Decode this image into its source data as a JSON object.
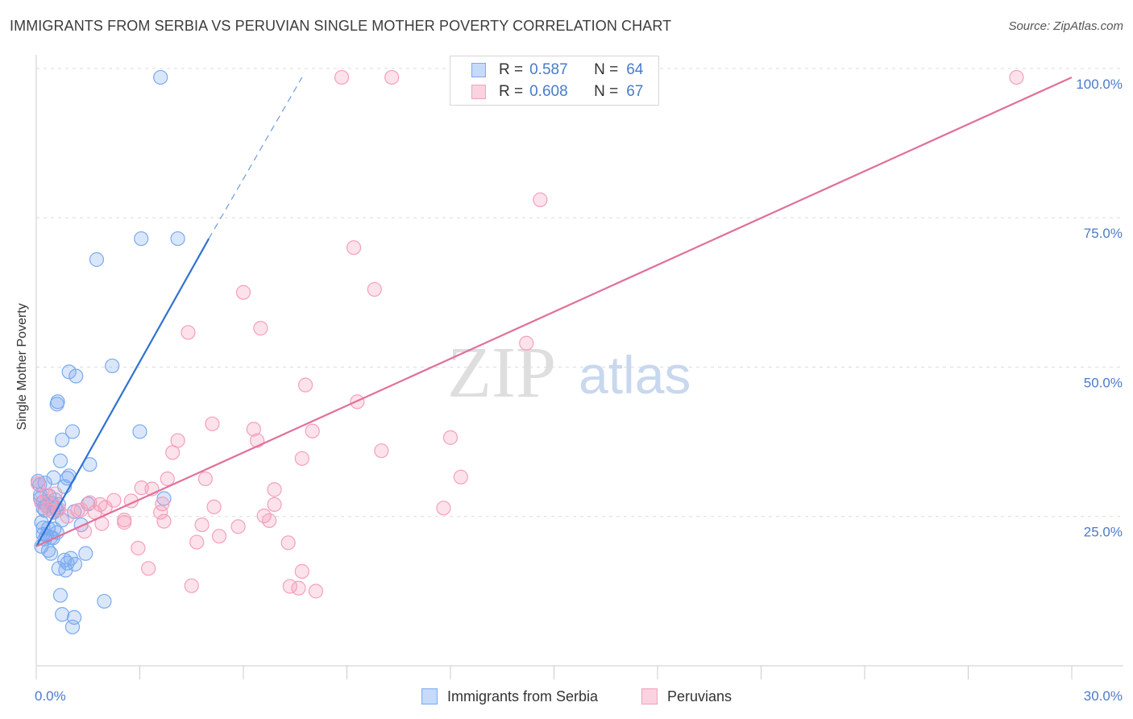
{
  "title": "IMMIGRANTS FROM SERBIA VS PERUVIAN SINGLE MOTHER POVERTY CORRELATION CHART",
  "source": "Source: ZipAtlas.com",
  "watermark": {
    "zip": "ZIP",
    "atlas": "atlas"
  },
  "legend": {
    "r_label": "R =",
    "n_label": "N =",
    "rows": [
      {
        "r": "0.587",
        "n": "64",
        "color": "#7aaaf0"
      },
      {
        "r": "0.608",
        "n": "67",
        "color": "#f4a0bb"
      }
    ]
  },
  "chart_data": {
    "type": "scatter",
    "title": "IMMIGRANTS FROM SERBIA VS PERUVIAN SINGLE MOTHER POVERTY CORRELATION CHART",
    "xlabel": "",
    "ylabel": "Single Mother Poverty",
    "xlim": [
      0,
      30
    ],
    "ylim": [
      0,
      102
    ],
    "x_tick_labels": [
      "0.0%",
      "30.0%"
    ],
    "y_ticks": [
      25,
      50,
      75,
      100
    ],
    "y_tick_labels": [
      "25.0%",
      "50.0%",
      "75.0%",
      "100.0%"
    ],
    "series": [
      {
        "name": "Immigrants from Serbia",
        "color": "#7aaaf0",
        "line_color": "#2f72d2",
        "trend": {
          "x0": 0,
          "y0": 20.0,
          "x1": 5.0,
          "y1": 71.5,
          "dash_x1": 7.7,
          "dash_y1": 98.5
        },
        "points": [
          [
            3.6,
            98.5
          ],
          [
            3.04,
            71.5
          ],
          [
            4.1,
            71.5
          ],
          [
            1.75,
            68.0
          ],
          [
            2.2,
            50.2
          ],
          [
            0.95,
            49.2
          ],
          [
            1.15,
            48.5
          ],
          [
            0.62,
            44.2
          ],
          [
            0.6,
            43.8
          ],
          [
            3.0,
            39.2
          ],
          [
            1.05,
            39.2
          ],
          [
            0.75,
            37.8
          ],
          [
            0.7,
            34.3
          ],
          [
            1.55,
            33.7
          ],
          [
            0.95,
            31.8
          ],
          [
            0.5,
            31.5
          ],
          [
            0.9,
            31.4
          ],
          [
            0.05,
            30.9
          ],
          [
            0.1,
            30.3
          ],
          [
            0.82,
            30.0
          ],
          [
            0.38,
            28.4
          ],
          [
            0.12,
            28.0
          ],
          [
            0.55,
            27.8
          ],
          [
            3.7,
            28.0
          ],
          [
            0.2,
            27.4
          ],
          [
            0.45,
            27.2
          ],
          [
            0.65,
            27.0
          ],
          [
            1.5,
            27.1
          ],
          [
            0.3,
            26.8
          ],
          [
            0.55,
            26.5
          ],
          [
            0.6,
            26.1
          ],
          [
            0.25,
            26.0
          ],
          [
            0.5,
            25.7
          ],
          [
            1.1,
            25.8
          ],
          [
            0.75,
            24.4
          ],
          [
            0.15,
            24.0
          ],
          [
            1.3,
            23.6
          ],
          [
            0.2,
            23.1
          ],
          [
            0.35,
            23.0
          ],
          [
            0.52,
            22.9
          ],
          [
            0.6,
            22.3
          ],
          [
            0.2,
            22.0
          ],
          [
            0.3,
            21.8
          ],
          [
            0.42,
            21.5
          ],
          [
            0.48,
            21.4
          ],
          [
            0.25,
            21.2
          ],
          [
            0.15,
            20.0
          ],
          [
            0.35,
            19.3
          ],
          [
            0.42,
            18.8
          ],
          [
            1.43,
            18.8
          ],
          [
            1.0,
            18.0
          ],
          [
            0.82,
            17.7
          ],
          [
            0.9,
            17.2
          ],
          [
            1.12,
            17.0
          ],
          [
            0.65,
            16.3
          ],
          [
            0.85,
            16.0
          ],
          [
            0.7,
            11.8
          ],
          [
            1.97,
            10.8
          ],
          [
            0.75,
            8.6
          ],
          [
            1.1,
            8.1
          ],
          [
            1.05,
            6.5
          ],
          [
            0.12,
            28.6
          ],
          [
            0.2,
            26.4
          ],
          [
            0.25,
            30.6
          ]
        ]
      },
      {
        "name": "Peruvians",
        "color": "#f4a0bb",
        "line_color": "#e0709a",
        "trend": {
          "x0": 0,
          "y0": 20.0,
          "x1": 30.0,
          "y1": 98.5
        },
        "points": [
          [
            8.85,
            98.5
          ],
          [
            10.3,
            98.5
          ],
          [
            28.4,
            98.5
          ],
          [
            14.6,
            78.0
          ],
          [
            9.2,
            70.0
          ],
          [
            6.0,
            62.5
          ],
          [
            9.8,
            63.0
          ],
          [
            6.5,
            56.5
          ],
          [
            4.4,
            55.8
          ],
          [
            14.2,
            54.0
          ],
          [
            7.8,
            47.0
          ],
          [
            9.3,
            44.2
          ],
          [
            5.1,
            40.5
          ],
          [
            6.3,
            39.6
          ],
          [
            8.0,
            39.3
          ],
          [
            12.0,
            38.2
          ],
          [
            4.1,
            37.7
          ],
          [
            6.4,
            37.7
          ],
          [
            10.0,
            36.0
          ],
          [
            3.95,
            35.7
          ],
          [
            7.7,
            34.7
          ],
          [
            12.3,
            31.6
          ],
          [
            3.8,
            31.3
          ],
          [
            4.9,
            31.3
          ],
          [
            3.05,
            29.8
          ],
          [
            3.35,
            29.6
          ],
          [
            6.9,
            29.5
          ],
          [
            0.55,
            28.8
          ],
          [
            0.05,
            30.5
          ],
          [
            2.25,
            27.7
          ],
          [
            2.75,
            27.6
          ],
          [
            1.55,
            27.3
          ],
          [
            1.85,
            27.0
          ],
          [
            3.65,
            27.1
          ],
          [
            6.9,
            27.0
          ],
          [
            2.0,
            26.5
          ],
          [
            1.3,
            26.1
          ],
          [
            5.15,
            26.6
          ],
          [
            11.8,
            26.4
          ],
          [
            1.7,
            25.7
          ],
          [
            3.6,
            25.7
          ],
          [
            6.6,
            25.1
          ],
          [
            0.9,
            25.0
          ],
          [
            2.55,
            24.4
          ],
          [
            6.75,
            24.3
          ],
          [
            2.55,
            24.0
          ],
          [
            1.9,
            23.8
          ],
          [
            3.7,
            24.2
          ],
          [
            4.8,
            23.6
          ],
          [
            5.85,
            23.3
          ],
          [
            1.4,
            22.5
          ],
          [
            5.3,
            21.7
          ],
          [
            4.65,
            20.7
          ],
          [
            7.3,
            20.6
          ],
          [
            2.95,
            19.7
          ],
          [
            0.35,
            26.3
          ],
          [
            0.65,
            26.2
          ],
          [
            0.15,
            27.3
          ],
          [
            1.2,
            26.0
          ],
          [
            3.25,
            16.3
          ],
          [
            7.7,
            15.8
          ],
          [
            4.5,
            13.4
          ],
          [
            7.35,
            13.3
          ],
          [
            7.6,
            13.0
          ],
          [
            8.1,
            12.5
          ],
          [
            0.45,
            25.9
          ],
          [
            0.3,
            28.5
          ]
        ]
      }
    ]
  },
  "bottom_legend": [
    {
      "label": "Immigrants from Serbia",
      "color": "#7aaaf0"
    },
    {
      "label": "Peruvians",
      "color": "#f4a0bb"
    }
  ]
}
